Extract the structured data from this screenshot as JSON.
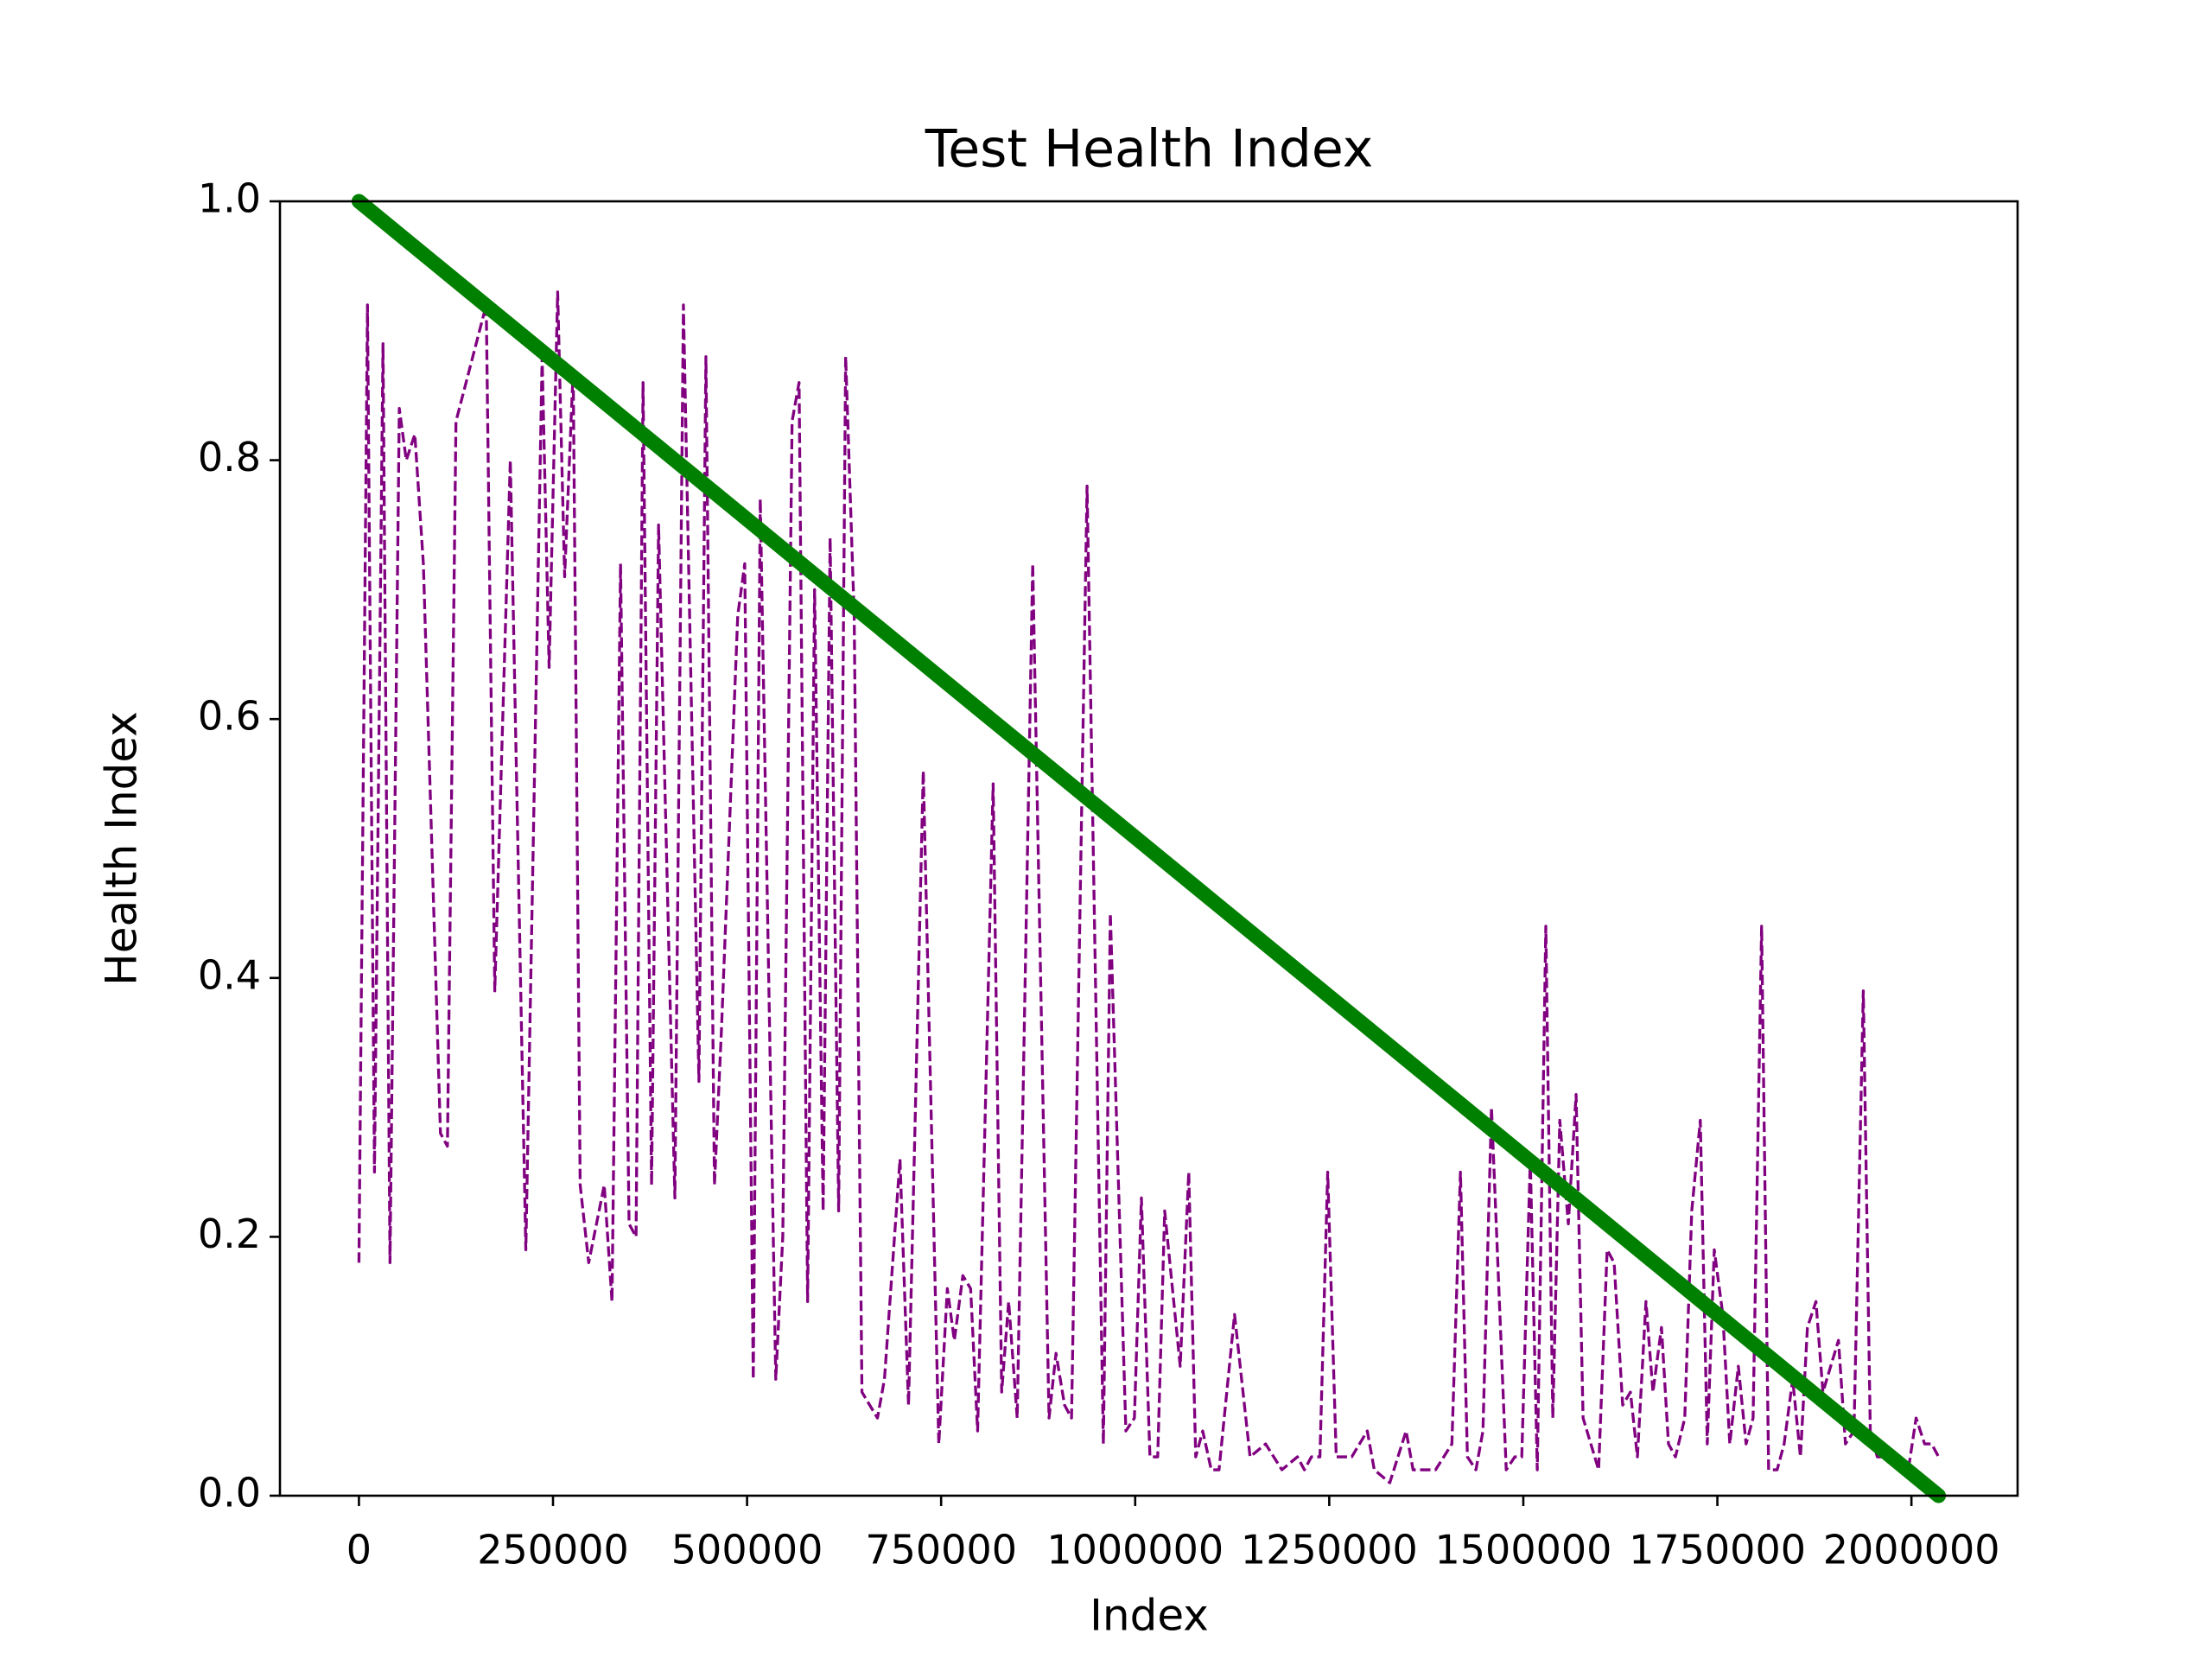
{
  "chart_data": {
    "type": "line",
    "title": "Test Health Index",
    "x_label": "Index",
    "y_label": "Health Index",
    "xlim": [
      -101750,
      2136750
    ],
    "xticks": [
      0,
      250000,
      500000,
      750000,
      1000000,
      1250000,
      1500000,
      1750000,
      2000000
    ],
    "ylim": [
      0,
      1
    ],
    "yticks": [
      {
        "value": 0,
        "label": "0.0"
      },
      0.2,
      0.4,
      0.6,
      0.8,
      {
        "value": 1,
        "label": "1.0"
      }
    ],
    "grid": false,
    "series": [
      {
        "color": "#800080",
        "linestyle": "dashed",
        "x": [
          0,
          11000,
          20000,
          31000,
          40000,
          52000,
          61000,
          72000,
          83000,
          105000,
          114000,
          125000,
          164000,
          175000,
          195000,
          215000,
          236000,
          245000,
          256000,
          265000,
          276000,
          285000,
          296000,
          316000,
          326000,
          337000,
          348000,
          357000,
          366000,
          377000,
          386000,
          407000,
          418000,
          438000,
          447000,
          458000,
          467000,
          488000,
          497000,
          508000,
          517000,
          537000,
          546000,
          558000,
          567000,
          578000,
          587000,
          598000,
          607000,
          618000,
          627000,
          638000,
          648000,
          668000,
          677000,
          697000,
          708000,
          727000,
          747000,
          758000,
          767000,
          778000,
          788000,
          797000,
          817000,
          828000,
          837000,
          848000,
          868000,
          889000,
          898000,
          909000,
          918000,
          938000,
          959000,
          968000,
          988000,
          999000,
          1008000,
          1019000,
          1029000,
          1038000,
          1058000,
          1069000,
          1078000,
          1087000,
          1098000,
          1108000,
          1128000,
          1148000,
          1168000,
          1189000,
          1209000,
          1218000,
          1227000,
          1238000,
          1248000,
          1259000,
          1279000,
          1299000,
          1308000,
          1328000,
          1349000,
          1358000,
          1378000,
          1387000,
          1408000,
          1419000,
          1428000,
          1439000,
          1448000,
          1459000,
          1478000,
          1489000,
          1498000,
          1509000,
          1518000,
          1529000,
          1538000,
          1547000,
          1558000,
          1568000,
          1577000,
          1597000,
          1608000,
          1617000,
          1628000,
          1638000,
          1647000,
          1658000,
          1667000,
          1678000,
          1687000,
          1696000,
          1708000,
          1717000,
          1728000,
          1737000,
          1746000,
          1757000,
          1766000,
          1777000,
          1787000,
          1796000,
          1807000,
          1816000,
          1827000,
          1836000,
          1847000,
          1857000,
          1866000,
          1877000,
          1886000,
          1906000,
          1915000,
          1926000,
          1938000,
          1947000,
          1956000,
          1967000,
          1976000,
          1987000,
          1996000,
          2006000,
          2017000,
          2026000,
          2035000
        ],
        "values": [
          0.18,
          0.92,
          0.25,
          0.89,
          0.18,
          0.84,
          0.8,
          0.82,
          0.72,
          0.28,
          0.27,
          0.83,
          0.92,
          0.39,
          0.8,
          0.19,
          0.88,
          0.64,
          0.93,
          0.71,
          0.87,
          0.24,
          0.18,
          0.24,
          0.15,
          0.72,
          0.21,
          0.2,
          0.86,
          0.24,
          0.75,
          0.23,
          0.92,
          0.32,
          0.88,
          0.24,
          0.36,
          0.68,
          0.72,
          0.09,
          0.77,
          0.09,
          0.2,
          0.83,
          0.86,
          0.15,
          0.7,
          0.22,
          0.74,
          0.22,
          0.88,
          0.68,
          0.08,
          0.06,
          0.09,
          0.26,
          0.07,
          0.56,
          0.04,
          0.16,
          0.12,
          0.17,
          0.16,
          0.05,
          0.55,
          0.08,
          0.15,
          0.06,
          0.72,
          0.06,
          0.11,
          0.07,
          0.06,
          0.78,
          0.04,
          0.45,
          0.05,
          0.06,
          0.23,
          0.03,
          0.03,
          0.22,
          0.1,
          0.25,
          0.03,
          0.05,
          0.02,
          0.02,
          0.14,
          0.03,
          0.04,
          0.02,
          0.03,
          0.02,
          0.03,
          0.03,
          0.25,
          0.03,
          0.03,
          0.05,
          0.02,
          0.01,
          0.05,
          0.02,
          0.02,
          0.02,
          0.04,
          0.25,
          0.03,
          0.02,
          0.05,
          0.3,
          0.02,
          0.03,
          0.03,
          0.26,
          0.02,
          0.44,
          0.06,
          0.29,
          0.21,
          0.31,
          0.06,
          0.02,
          0.19,
          0.18,
          0.07,
          0.08,
          0.03,
          0.15,
          0.08,
          0.13,
          0.04,
          0.03,
          0.06,
          0.22,
          0.29,
          0.04,
          0.19,
          0.14,
          0.04,
          0.1,
          0.04,
          0.06,
          0.44,
          0.02,
          0.02,
          0.04,
          0.09,
          0.03,
          0.13,
          0.15,
          0.08,
          0.12,
          0.04,
          0.05,
          0.39,
          0.05,
          0.03,
          0.03,
          0.03,
          0.02,
          0.02,
          0.06,
          0.04,
          0.04,
          0.03
        ]
      },
      {
        "color": "#008000",
        "linestyle": "solid",
        "x": [
          0,
          2035000
        ],
        "values": [
          1,
          0
        ]
      }
    ]
  }
}
